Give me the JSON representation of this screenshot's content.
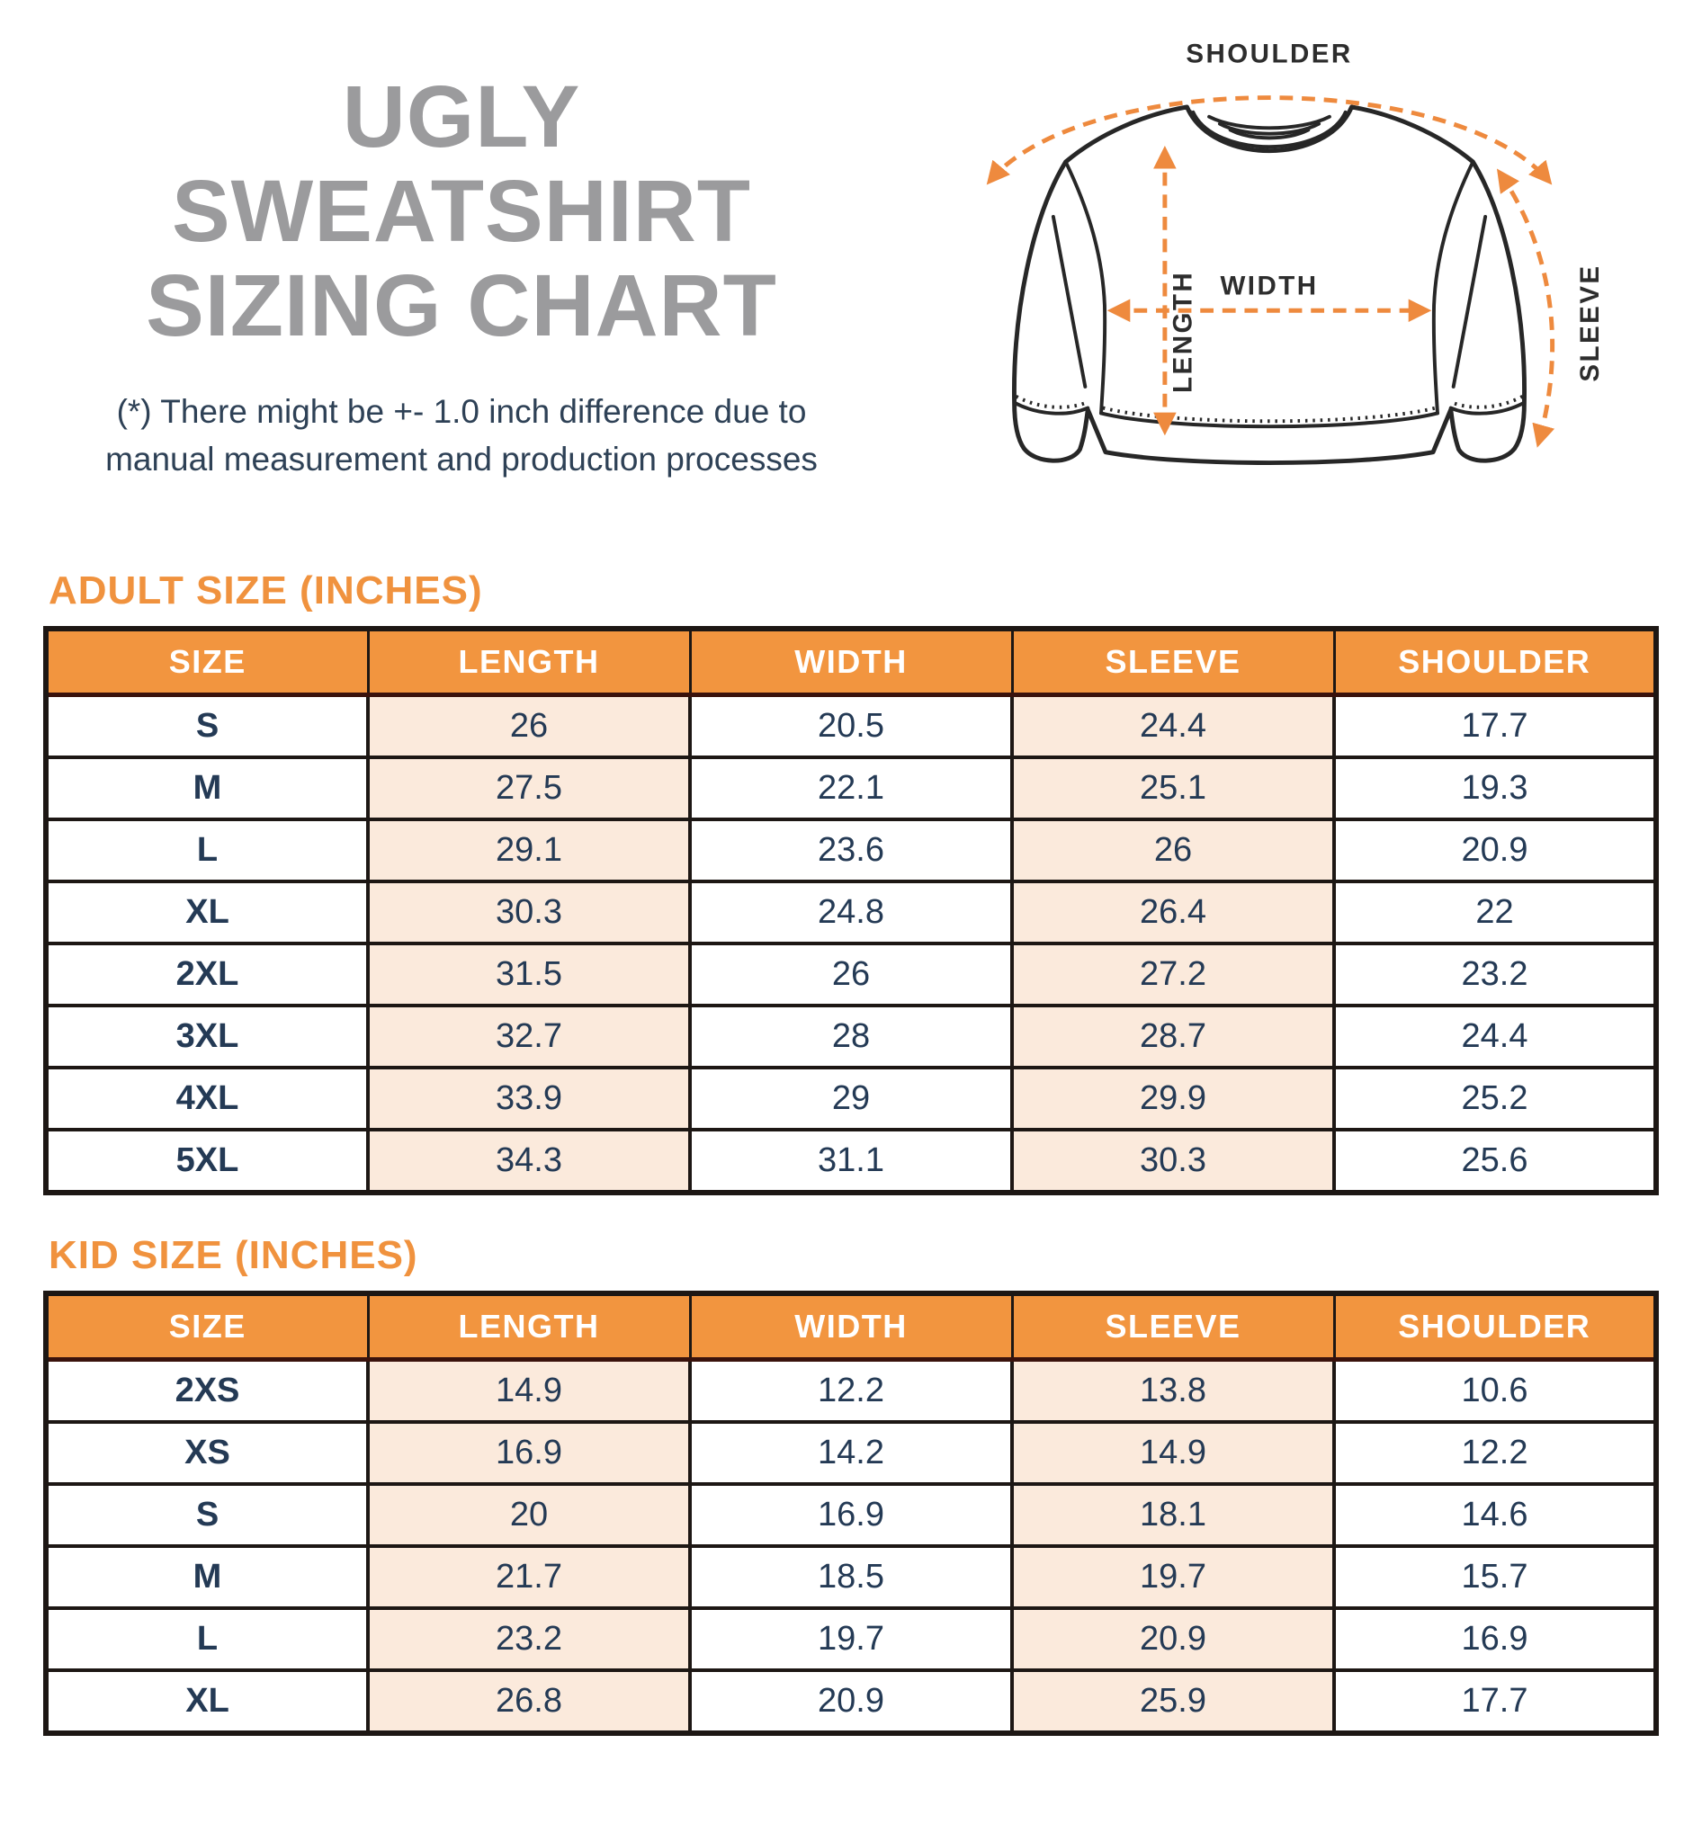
{
  "header": {
    "title_line1": "UGLY SWEATSHIRT",
    "title_line2": "SIZING CHART",
    "disclaimer_line1": "(*) There might be +- 1.0 inch difference due to",
    "disclaimer_line2": "manual measurement and production processes"
  },
  "diagram": {
    "shoulder_label": "SHOULDER",
    "width_label": "WIDTH",
    "length_label": "LENGTH",
    "sleeve_label": "SLEEVE"
  },
  "colors": {
    "accent_orange": "#F0923E",
    "table_header_orange": "#F2953F",
    "peach_cell": "#FBEADC",
    "navy_text": "#243A55",
    "title_gray": "#9B9B9D",
    "border_dark": "#1D1714",
    "dashed_arrow_orange": "#EE8A3E"
  },
  "chart_data": [
    {
      "type": "table",
      "title": "ADULT SIZE (INCHES)",
      "columns": [
        "SIZE",
        "LENGTH",
        "WIDTH",
        "SLEEVE",
        "SHOULDER"
      ],
      "rows": [
        [
          "S",
          "26",
          "20.5",
          "24.4",
          "17.7"
        ],
        [
          "M",
          "27.5",
          "22.1",
          "25.1",
          "19.3"
        ],
        [
          "L",
          "29.1",
          "23.6",
          "26",
          "20.9"
        ],
        [
          "XL",
          "30.3",
          "24.8",
          "26.4",
          "22"
        ],
        [
          "2XL",
          "31.5",
          "26",
          "27.2",
          "23.2"
        ],
        [
          "3XL",
          "32.7",
          "28",
          "28.7",
          "24.4"
        ],
        [
          "4XL",
          "33.9",
          "29",
          "29.9",
          "25.2"
        ],
        [
          "5XL",
          "34.3",
          "31.1",
          "30.3",
          "25.6"
        ]
      ]
    },
    {
      "type": "table",
      "title": "KID SIZE (INCHES)",
      "columns": [
        "SIZE",
        "LENGTH",
        "WIDTH",
        "SLEEVE",
        "SHOULDER"
      ],
      "rows": [
        [
          "2XS",
          "14.9",
          "12.2",
          "13.8",
          "10.6"
        ],
        [
          "XS",
          "16.9",
          "14.2",
          "14.9",
          "12.2"
        ],
        [
          "S",
          "20",
          "16.9",
          "18.1",
          "14.6"
        ],
        [
          "M",
          "21.7",
          "18.5",
          "19.7",
          "15.7"
        ],
        [
          "L",
          "23.2",
          "19.7",
          "20.9",
          "16.9"
        ],
        [
          "XL",
          "26.8",
          "20.9",
          "25.9",
          "17.7"
        ]
      ]
    }
  ]
}
